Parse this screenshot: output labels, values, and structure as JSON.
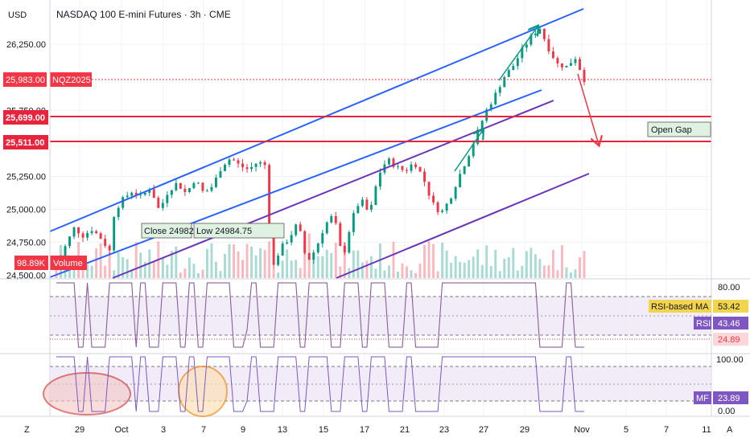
{
  "chart_data": {
    "type": "candlestick",
    "title": "NASDAQ 100 E-mini Futures · 3h · CME",
    "currency_label": "USD",
    "price_axis": {
      "ticks": [
        "26,250.00",
        "25,750.00",
        "25,250.00",
        "25,000.00",
        "24,750.00",
        "24,500.00"
      ],
      "tick_values": [
        26250,
        25750,
        25250,
        25000,
        24750,
        24500
      ],
      "range": [
        24480,
        26500
      ]
    },
    "time_axis": {
      "ticks": [
        "29",
        "Oct",
        "3",
        "7",
        "9",
        "13",
        "15",
        "17",
        "21",
        "23",
        "27",
        "29",
        "Nov",
        "5",
        "7",
        "11"
      ],
      "corner_left": "Z",
      "corner_right": "A"
    },
    "price_path": [
      [
        0,
        24560
      ],
      [
        2,
        24720
      ],
      [
        4,
        24860
      ],
      [
        6,
        24800
      ],
      [
        8,
        24850
      ],
      [
        10,
        24780
      ],
      [
        12,
        24680
      ],
      [
        13,
        24990
      ],
      [
        15,
        25080
      ],
      [
        17,
        25140
      ],
      [
        19,
        25090
      ],
      [
        21,
        25170
      ],
      [
        23,
        24990
      ],
      [
        25,
        25140
      ],
      [
        27,
        25200
      ],
      [
        29,
        25120
      ],
      [
        31,
        25230
      ],
      [
        33,
        25120
      ],
      [
        35,
        25180
      ],
      [
        37,
        25330
      ],
      [
        39,
        25390
      ],
      [
        41,
        25330
      ],
      [
        43,
        25300
      ],
      [
        45,
        25360
      ],
      [
        47,
        25330
      ],
      [
        48,
        24520
      ],
      [
        50,
        24700
      ],
      [
        52,
        24780
      ],
      [
        54,
        24900
      ],
      [
        56,
        24600
      ],
      [
        58,
        24700
      ],
      [
        60,
        24880
      ],
      [
        62,
        24960
      ],
      [
        64,
        24620
      ],
      [
        66,
        24920
      ],
      [
        68,
        25080
      ],
      [
        70,
        24960
      ],
      [
        72,
        25260
      ],
      [
        74,
        25380
      ],
      [
        76,
        25320
      ],
      [
        78,
        25290
      ],
      [
        80,
        25360
      ],
      [
        82,
        25240
      ],
      [
        84,
        25050
      ],
      [
        86,
        24970
      ],
      [
        88,
        25080
      ],
      [
        90,
        25250
      ],
      [
        92,
        25400
      ],
      [
        94,
        25570
      ],
      [
        96,
        25740
      ],
      [
        98,
        25860
      ],
      [
        100,
        26000
      ],
      [
        102,
        26080
      ],
      [
        104,
        26200
      ],
      [
        106,
        26300
      ],
      [
        108,
        26380
      ],
      [
        110,
        26220
      ],
      [
        112,
        26100
      ],
      [
        114,
        26080
      ],
      [
        116,
        26150
      ],
      [
        118,
        25983
      ]
    ],
    "volume_label": "98.89K",
    "volume_title": "Volume",
    "instrument": "NQZ2025",
    "last_price": "25,983.00",
    "horizontal_levels": [
      {
        "value": 25699,
        "label": "25,699.00",
        "color": "#e8233c"
      },
      {
        "value": 25511,
        "label": "25,511.00",
        "color": "#e8233c"
      }
    ],
    "annotations": {
      "open_gap": "Open Gap",
      "close_box": "Close 24982",
      "low_box": "Low 24984.75"
    },
    "rsi": {
      "ticks": [
        "80.00",
        "24.89"
      ],
      "ma_label": "RSI-based MA",
      "ma_value": "53.42",
      "name": "RSI",
      "value": "43.46"
    },
    "mf": {
      "ticks": [
        "100.00",
        "0.00"
      ],
      "name": "MF",
      "value": "23.89"
    },
    "colors": {
      "up": "#089981",
      "down": "#f23645",
      "channel_blue": "#2962ff",
      "channel_purple": "#6a35b8",
      "level": "#e8233c",
      "arrow": "#f23645",
      "rsi_line": "#7e57c2",
      "rsi_ma": "#f2d44e",
      "mf_line": "#7e57c2"
    }
  }
}
